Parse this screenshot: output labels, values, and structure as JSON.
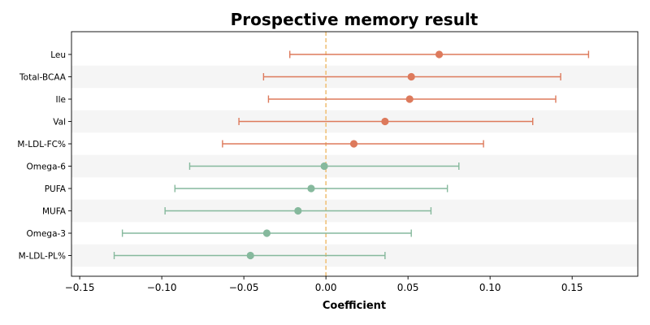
{
  "chart_data": {
    "type": "forest",
    "title": "Prospective memory result",
    "xlabel": "Coefficient",
    "ylabel": "",
    "xlim": [
      -0.155,
      0.19
    ],
    "xticks": [
      -0.15,
      -0.1,
      -0.05,
      0.0,
      0.05,
      0.1,
      0.15
    ],
    "xtick_labels": [
      "−0.15",
      "−0.10",
      "−0.05",
      "0.00",
      "0.05",
      "0.10",
      "0.15"
    ],
    "reference_line": 0.0,
    "grid": false,
    "alternating_row_shading": true,
    "colors": {
      "positive": "#dd7a5c",
      "negative": "#86b99d",
      "reference_line": "#f0c27b",
      "row_shade": "#f5f5f5"
    },
    "rows": [
      {
        "label": "Leu",
        "estimate": 0.069,
        "lower": -0.022,
        "upper": 0.16
      },
      {
        "label": "Total-BCAA",
        "estimate": 0.052,
        "lower": -0.038,
        "upper": 0.143
      },
      {
        "label": "Ile",
        "estimate": 0.051,
        "lower": -0.035,
        "upper": 0.14
      },
      {
        "label": "Val",
        "estimate": 0.036,
        "lower": -0.053,
        "upper": 0.126
      },
      {
        "label": "M-LDL-FC%",
        "estimate": 0.017,
        "lower": -0.063,
        "upper": 0.096
      },
      {
        "label": "Omega-6",
        "estimate": -0.001,
        "lower": -0.083,
        "upper": 0.081
      },
      {
        "label": "PUFA",
        "estimate": -0.009,
        "lower": -0.092,
        "upper": 0.074
      },
      {
        "label": "MUFA",
        "estimate": -0.017,
        "lower": -0.098,
        "upper": 0.064
      },
      {
        "label": "Omega-3",
        "estimate": -0.036,
        "lower": -0.124,
        "upper": 0.052
      },
      {
        "label": "M-LDL-PL%",
        "estimate": -0.046,
        "lower": -0.129,
        "upper": 0.036
      }
    ]
  }
}
